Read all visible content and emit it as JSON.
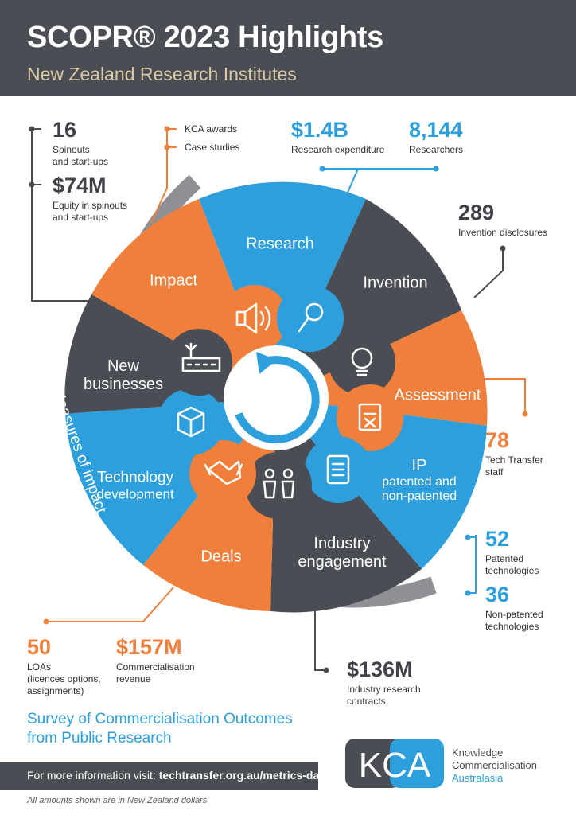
{
  "header": {
    "title": "SCOPR® 2023 Highlights",
    "subtitle": "New Zealand Research Institutes"
  },
  "stats": {
    "spinouts": {
      "value": "16",
      "label1": "Spinouts",
      "label2": "and start-ups"
    },
    "equity": {
      "value": "$74M",
      "label1": "Equity in spinouts",
      "label2": "and start-ups"
    },
    "kca_awards": "KCA awards",
    "case_studies": "Case studies",
    "research_exp": {
      "value": "$1.4B",
      "label1": "Research expenditure"
    },
    "researchers": {
      "value": "8,144",
      "label1": "Researchers"
    },
    "disclosures": {
      "value": "289",
      "label1": "Invention disclosures"
    },
    "tt_staff": {
      "value": "78",
      "label1": "Tech Transfer",
      "label2": "staff"
    },
    "patented": {
      "value": "52",
      "label1": "Patented",
      "label2": "technologies"
    },
    "non_patented": {
      "value": "36",
      "label1": "Non-patented",
      "label2": "technologies"
    },
    "loas": {
      "value": "50",
      "label1": "LOAs",
      "label2": "(licences options,",
      "label3": "assignments)"
    },
    "comm_revenue": {
      "value": "$157M",
      "label1": "Commercialisation",
      "label2": "revenue"
    },
    "industry_contracts": {
      "value": "$136M",
      "label1": "Industry research",
      "label2": "contracts"
    }
  },
  "wheel": {
    "research": "Research",
    "invention": "Invention",
    "assessment": "Assessment",
    "ip_title": "IP",
    "ip_sub1": "patented and",
    "ip_sub2": "non-patented",
    "industry1": "Industry",
    "industry2": "engagement",
    "deals": "Deals",
    "tech1": "Technology",
    "tech2": "development",
    "newbiz1": "New",
    "newbiz2": "businesses",
    "impact": "Impact",
    "measures": "Measures of impact"
  },
  "colors": {
    "dark": "#4a4d53",
    "blue": "#2d9fdc",
    "orange": "#f07f3c",
    "gray_arc": "#8e9096",
    "gold": "#d9c9a5"
  },
  "icons": [
    "speaker-icon",
    "magnifier-icon",
    "lightbulb-icon",
    "clipboard-icon",
    "scroll-icon",
    "people-icon",
    "handshake-icon",
    "cube-icon",
    "factory-icon",
    "cycle-arrow-icon"
  ],
  "footer": {
    "survey1": "Survey of Commercialisation Outcomes",
    "survey2": "from Public Research",
    "info_prefix": "For more information visit: ",
    "info_url": "techtransfer.org.au/metrics-data",
    "note": "All amounts shown are in New Zealand dollars",
    "kca_logo": "KCA",
    "kca_name1": "Knowledge",
    "kca_name2": "Commercialisation",
    "kca_name3": "Australasia"
  }
}
